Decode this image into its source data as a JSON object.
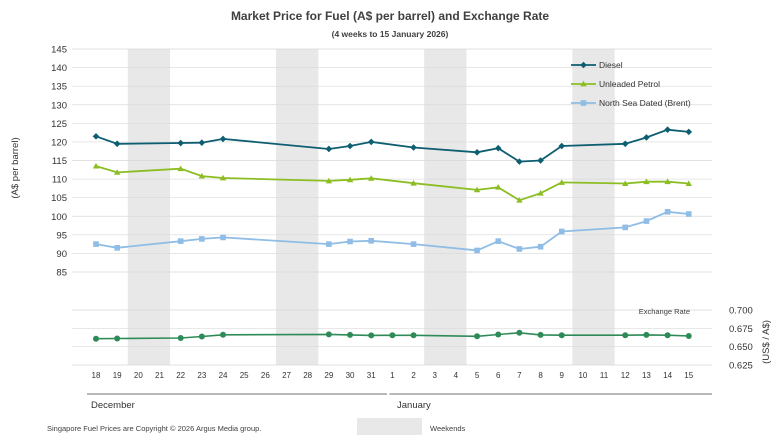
{
  "chart_data": {
    "type": "line",
    "title": "Market Price for Fuel (A$ per barrel) and Exchange Rate",
    "subtitle": "(4 weeks to 15 January 2026)",
    "ylabel": "(A$ per barrel)",
    "ylabel_right": "(US$ / A$)",
    "ylim": [
      85,
      145
    ],
    "yticks": [
      "145",
      "140",
      "135",
      "130",
      "125",
      "120",
      "115",
      "110",
      "105",
      "100",
      "95",
      "90",
      "85"
    ],
    "ylim_right": [
      0.625,
      0.7
    ],
    "yticks_right": [
      "0.700",
      "0.675",
      "0.650",
      "0.625"
    ],
    "exchange_label": "Exchange  Rate",
    "categories": [
      "18",
      "19",
      "20",
      "21",
      "22",
      "23",
      "24",
      "25",
      "26",
      "27",
      "28",
      "29",
      "30",
      "31",
      "1",
      "2",
      "3",
      "4",
      "5",
      "6",
      "7",
      "8",
      "9",
      "10",
      "11",
      "12",
      "13",
      "14",
      "15"
    ],
    "months": [
      "December",
      "January"
    ],
    "weekends": [
      [
        "20",
        "21"
      ],
      [
        "27",
        "28"
      ],
      [
        "3",
        "4"
      ],
      [
        "10",
        "11"
      ]
    ],
    "weekend_label": "Weekends",
    "legend_position": "top-right",
    "series": [
      {
        "name": "Diesel",
        "color": "#0e5e72",
        "marker": "diamond",
        "values": [
          121.5,
          119.5,
          null,
          null,
          119.7,
          119.8,
          120.8,
          null,
          null,
          null,
          null,
          118.1,
          118.9,
          120.0,
          null,
          118.5,
          null,
          null,
          117.2,
          118.3,
          114.7,
          115.0,
          118.9,
          null,
          null,
          119.5,
          121.2,
          123.3,
          122.7
        ]
      },
      {
        "name": "Unleaded Petrol",
        "color": "#8cbe23",
        "marker": "triangle",
        "values": [
          113.5,
          111.8,
          null,
          null,
          112.8,
          110.8,
          110.3,
          null,
          null,
          null,
          null,
          109.5,
          109.8,
          110.2,
          null,
          108.9,
          null,
          null,
          107.1,
          107.8,
          104.3,
          106.2,
          109.1,
          null,
          null,
          108.8,
          109.3,
          109.3,
          108.8
        ]
      },
      {
        "name": "North Sea Dated (Brent)",
        "color": "#8fbde5",
        "marker": "square",
        "values": [
          92.5,
          91.5,
          null,
          null,
          93.3,
          93.9,
          94.3,
          null,
          null,
          null,
          null,
          92.5,
          93.2,
          93.4,
          null,
          92.5,
          null,
          null,
          90.8,
          93.3,
          91.2,
          91.8,
          95.9,
          null,
          null,
          97.0,
          98.7,
          101.2,
          100.6
        ]
      },
      {
        "name": "Exchange Rate",
        "color": "#2e8b57",
        "marker": "circle",
        "axis": "right",
        "values": [
          0.6608,
          0.6612,
          null,
          null,
          0.6618,
          0.6638,
          0.6662,
          null,
          null,
          null,
          null,
          0.6667,
          0.6661,
          0.6654,
          0.6655,
          0.6655,
          null,
          null,
          0.6642,
          0.6666,
          0.6689,
          0.6661,
          0.6656,
          null,
          null,
          0.6656,
          0.6661,
          0.6656,
          0.6645
        ]
      }
    ]
  },
  "footer": {
    "copyright": "Singapore  Fuel  Prices  are Copyright  ©  2026  Argus  Media group."
  }
}
